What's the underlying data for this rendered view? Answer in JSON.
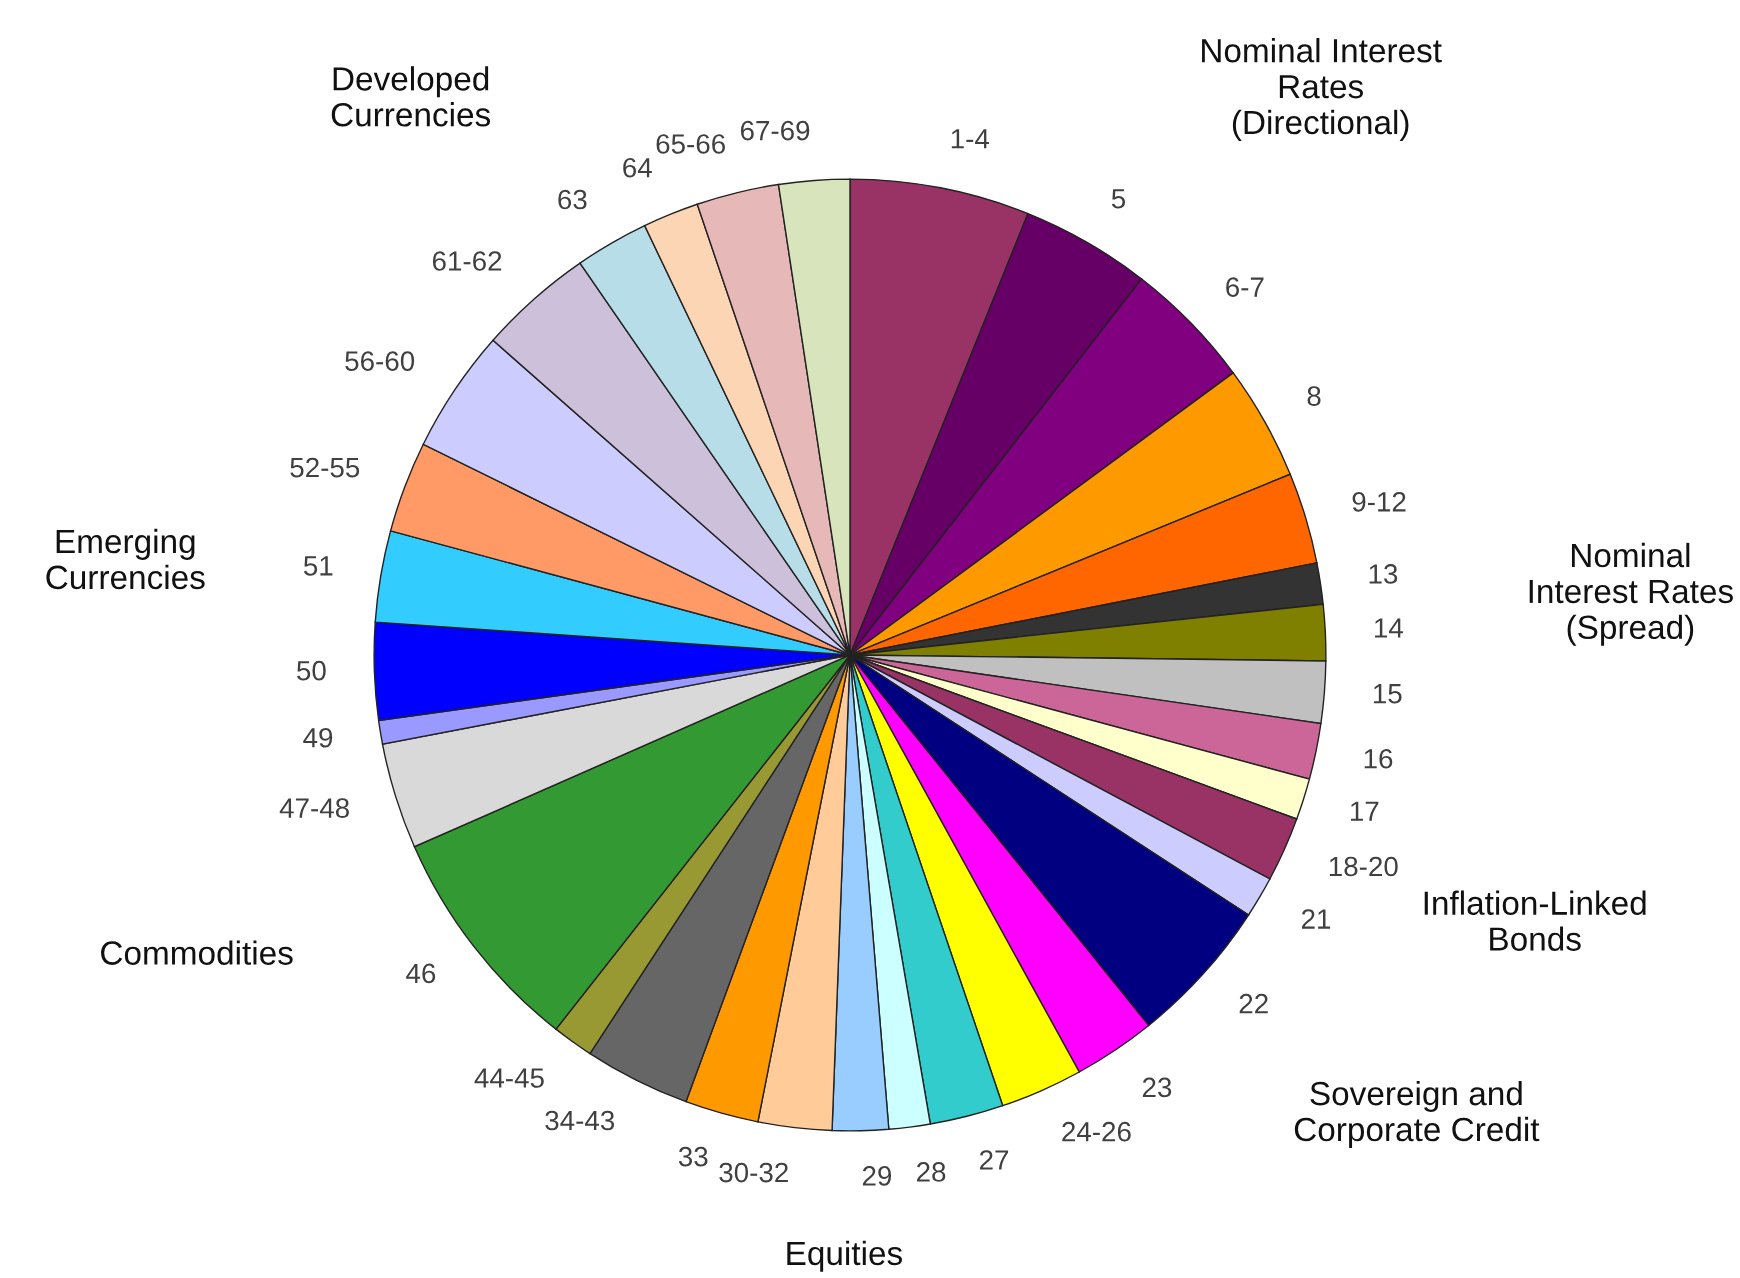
{
  "chart_data": {
    "type": "pie",
    "categories": [
      "1-4",
      "5",
      "6-7",
      "8",
      "9-12",
      "13",
      "14",
      "15",
      "16",
      "17",
      "18-20",
      "21",
      "22",
      "23",
      "24-26",
      "27",
      "28",
      "29",
      "30-32",
      "33",
      "34-43",
      "44-45",
      "46",
      "47-48",
      "49",
      "50",
      "51",
      "52-55",
      "56-60",
      "61-62",
      "63",
      "64",
      "65-66",
      "67-69"
    ],
    "values": [
      6.1,
      4.4,
      4.4,
      3.9,
      3.1,
      1.4,
      1.9,
      2.1,
      1.9,
      1.4,
      2.2,
      1.4,
      5.0,
      2.8,
      2.8,
      2.5,
      1.4,
      1.9,
      2.5,
      2.5,
      3.6,
      1.4,
      7.8,
      3.6,
      0.8,
      3.3,
      3.1,
      3.1,
      4.2,
      3.9,
      2.5,
      1.9,
      2.8,
      2.4
    ],
    "colors": [
      "#993366",
      "#660066",
      "#800080",
      "#ff9900",
      "#ff6600",
      "#333333",
      "#808000",
      "#c0c0c0",
      "#cc6699",
      "#ffffcc",
      "#993366",
      "#ccccff",
      "#000080",
      "#ff00ff",
      "#ffff00",
      "#33cccc",
      "#ccffff",
      "#99ccff",
      "#ffcc99",
      "#ff9900",
      "#666666",
      "#999933",
      "#339933",
      "#d9d9d9",
      "#9999ff",
      "#0000ff",
      "#33ccff",
      "#ff9966",
      "#ccccff",
      "#ccc0da",
      "#b7dee8",
      "#fcd5b5",
      "#e6b9b8",
      "#d7e4bc"
    ],
    "annotations": [
      "Nominal Interest\nRates\n(Directional)",
      "Nominal\nInterest Rates\n(Spread)",
      "Inflation-Linked\nBonds",
      "Sovereign and\nCorporate Credit",
      "Equities",
      "Commodities",
      "Emerging\nCurrencies",
      "Developed\nCurrencies"
    ],
    "legend": false
  }
}
